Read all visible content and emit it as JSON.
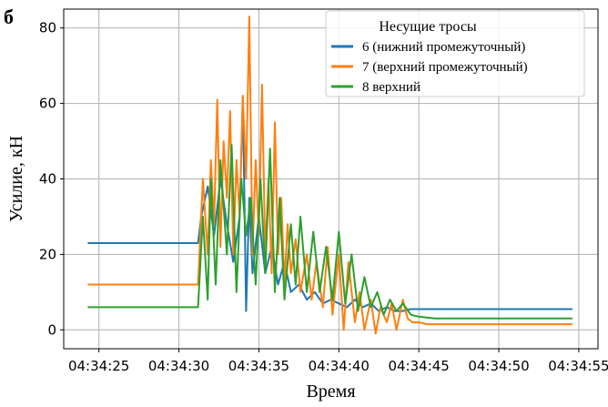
{
  "panel_label": "б",
  "chart_data": {
    "type": "line",
    "title": "",
    "xlabel": "Время",
    "ylabel": "Усилие, кН",
    "x_tick_labels": [
      "04:34:25",
      "04:34:30",
      "04:34:35",
      "04:34:40",
      "04:34:45",
      "04:34:50",
      "04:34:55"
    ],
    "x_tick_seconds": [
      25,
      30,
      35,
      40,
      45,
      50,
      55
    ],
    "xlim": [
      22.8,
      56.2
    ],
    "y_ticks": [
      0,
      20,
      40,
      60,
      80
    ],
    "ylim": [
      -5,
      85
    ],
    "grid": true,
    "legend": {
      "title": "Несущие тросы",
      "position": "top-right",
      "entries": [
        "6 (нижний промежуточный)",
        "7 (верхний промежуточный)",
        "8 верхний"
      ]
    },
    "series": [
      {
        "name": "6 (нижний промежуточный)",
        "color": "#1f77b4",
        "x": [
          24.3,
          31.2,
          31.4,
          31.8,
          32.2,
          32.6,
          33.0,
          33.4,
          33.8,
          34.0,
          34.2,
          34.4,
          34.6,
          35.0,
          35.4,
          35.8,
          36.2,
          36.6,
          37.0,
          37.5,
          38.0,
          38.5,
          39.0,
          39.5,
          40.0,
          40.5,
          41.0,
          41.5,
          42.0,
          42.5,
          43.0,
          43.5,
          44.0,
          44.5,
          45.0,
          46.0,
          50.0,
          54.6
        ],
        "y": [
          23,
          23,
          30,
          38,
          25,
          40,
          28,
          18,
          30,
          62,
          5,
          35,
          15,
          30,
          15,
          22,
          12,
          18,
          10,
          12,
          8,
          10,
          7,
          8,
          7,
          6,
          8,
          6,
          7,
          5,
          6,
          5,
          5,
          5.5,
          5.5,
          5.5,
          5.5,
          5.5
        ]
      },
      {
        "name": "7 (верхний промежуточный)",
        "color": "#ff7f0e",
        "x": [
          24.3,
          31.2,
          31.5,
          31.8,
          32.0,
          32.2,
          32.4,
          32.6,
          32.8,
          33.0,
          33.2,
          33.4,
          33.6,
          33.8,
          34.0,
          34.2,
          34.4,
          34.6,
          34.8,
          35.0,
          35.2,
          35.4,
          35.6,
          35.8,
          36.0,
          36.2,
          36.4,
          36.6,
          36.8,
          37.0,
          37.3,
          37.6,
          38.0,
          38.3,
          38.6,
          39.0,
          39.3,
          39.6,
          40.0,
          40.3,
          40.6,
          41.0,
          41.3,
          41.6,
          42.0,
          42.3,
          42.6,
          43.0,
          43.3,
          43.6,
          44.0,
          44.3,
          44.6,
          45.0,
          45.5,
          46.0,
          50.0,
          54.6
        ],
        "y": [
          12,
          12,
          40,
          20,
          45,
          28,
          61,
          22,
          50,
          35,
          58,
          20,
          45,
          30,
          62,
          40,
          83,
          20,
          45,
          25,
          65,
          20,
          40,
          15,
          55,
          20,
          35,
          12,
          28,
          15,
          24,
          10,
          20,
          8,
          18,
          6,
          22,
          4,
          20,
          0,
          18,
          2,
          10,
          0,
          8,
          -1,
          6,
          2,
          7,
          0,
          8,
          3,
          2,
          2,
          1.5,
          1.5,
          1.5,
          1.5
        ]
      },
      {
        "name": "8 верхний",
        "color": "#2ca02c",
        "x": [
          24.3,
          31.2,
          31.5,
          31.8,
          32.0,
          32.3,
          32.6,
          33.0,
          33.3,
          33.6,
          33.9,
          34.2,
          34.5,
          34.8,
          35.1,
          35.4,
          35.7,
          36.0,
          36.3,
          36.6,
          37.0,
          37.3,
          37.6,
          38.0,
          38.4,
          38.8,
          39.2,
          39.6,
          40.0,
          40.4,
          40.8,
          41.2,
          41.6,
          42.0,
          42.4,
          42.8,
          43.2,
          43.6,
          44.0,
          44.5,
          45.0,
          46.0,
          50.0,
          54.6
        ],
        "y": [
          6,
          6,
          30,
          8,
          40,
          12,
          45,
          20,
          49,
          10,
          40,
          25,
          35,
          12,
          40,
          15,
          48,
          10,
          35,
          8,
          28,
          12,
          30,
          10,
          26,
          10,
          22,
          8,
          26,
          7,
          20,
          5,
          14,
          6,
          10,
          4,
          8,
          5,
          7,
          4,
          3.5,
          3,
          3,
          3
        ]
      }
    ]
  }
}
